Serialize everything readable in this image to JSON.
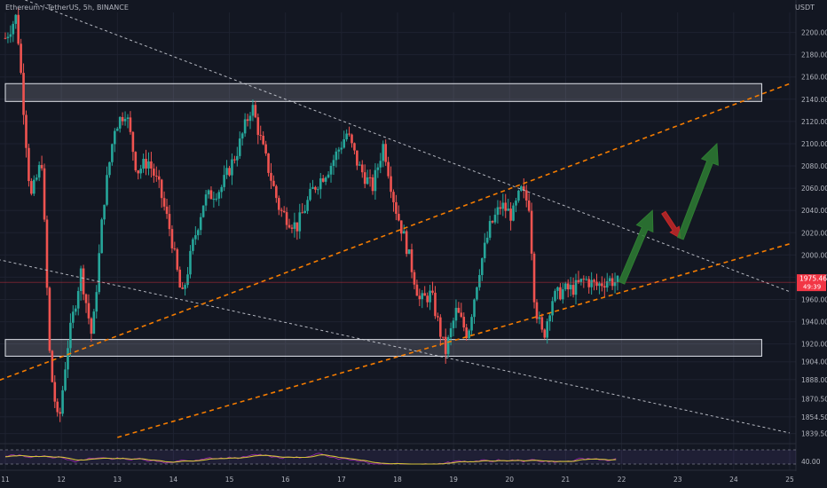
{
  "header": {
    "symbol_title": "Ethereum / TetherUS, 5h, BINANCE",
    "unit_label": "USDT"
  },
  "price_badge": {
    "value": "1975.46",
    "countdown": "49:39",
    "color": "#f23645"
  },
  "colors": {
    "background": "#131722",
    "bull": "#26a69a",
    "bear": "#ef5350",
    "channel": "#f57c00",
    "trendline": "#d1d4dc",
    "zone": "#d1d4dc",
    "arrow_up": "#2e7d32",
    "arrow_down": "#c62828",
    "rsi_line": "#d4c13a",
    "rsi_secondary": "#9c27b0",
    "grid": "#1e2230"
  },
  "chart_data": {
    "type": "candlestick",
    "x_axis": {
      "type": "date",
      "ticks": [
        "11",
        "12",
        "13",
        "14",
        "15",
        "16",
        "17",
        "18",
        "19",
        "20",
        "21",
        "22",
        "23",
        "24",
        "25"
      ],
      "range": [
        11,
        25
      ]
    },
    "y_axis": {
      "ticks": [
        "2200.00",
        "2180.00",
        "2160.00",
        "2140.00",
        "2120.00",
        "2100.00",
        "2080.00",
        "2060.00",
        "2040.00",
        "2020.00",
        "2000.00",
        "1980.00",
        "1960.00",
        "1940.00",
        "1920.00",
        "1904.00",
        "1888.00",
        "1870.50",
        "1854.50",
        "1839.50"
      ],
      "range": [
        1832,
        2218
      ]
    },
    "price_path": [
      [
        11.0,
        2195
      ],
      [
        11.2,
        2215
      ],
      [
        11.45,
        2050
      ],
      [
        11.65,
        2085
      ],
      [
        11.8,
        1900
      ],
      [
        11.95,
        1845
      ],
      [
        12.1,
        1915
      ],
      [
        12.35,
        1985
      ],
      [
        12.55,
        1925
      ],
      [
        12.75,
        2045
      ],
      [
        12.95,
        2115
      ],
      [
        13.15,
        2130
      ],
      [
        13.35,
        2075
      ],
      [
        13.55,
        2085
      ],
      [
        13.75,
        2060
      ],
      [
        13.95,
        2020
      ],
      [
        14.15,
        1960
      ],
      [
        14.35,
        2010
      ],
      [
        14.55,
        2050
      ],
      [
        14.85,
        2060
      ],
      [
        15.15,
        2095
      ],
      [
        15.4,
        2135
      ],
      [
        15.6,
        2095
      ],
      [
        15.9,
        2040
      ],
      [
        16.2,
        2025
      ],
      [
        16.5,
        2060
      ],
      [
        16.8,
        2080
      ],
      [
        17.1,
        2110
      ],
      [
        17.3,
        2080
      ],
      [
        17.55,
        2060
      ],
      [
        17.75,
        2100
      ],
      [
        17.95,
        2045
      ],
      [
        18.15,
        2010
      ],
      [
        18.4,
        1958
      ],
      [
        18.6,
        1965
      ],
      [
        18.85,
        1912
      ],
      [
        19.05,
        1950
      ],
      [
        19.25,
        1928
      ],
      [
        19.45,
        1985
      ],
      [
        19.65,
        2025
      ],
      [
        19.85,
        2045
      ],
      [
        20.05,
        2035
      ],
      [
        20.2,
        2058
      ],
      [
        20.35,
        2045
      ],
      [
        20.45,
        1955
      ],
      [
        20.6,
        1925
      ],
      [
        20.75,
        1960
      ],
      [
        20.95,
        1968
      ],
      [
        21.15,
        1970
      ],
      [
        21.35,
        1978
      ],
      [
        21.55,
        1972
      ],
      [
        21.75,
        1978
      ],
      [
        21.95,
        1975
      ]
    ],
    "horizontal_zones": [
      {
        "name": "resistance",
        "from": 2138,
        "to": 2154,
        "x_start": 11.0,
        "x_end": 24.5
      },
      {
        "name": "support",
        "from": 1909,
        "to": 1924,
        "x_start": 11.0,
        "x_end": 24.5
      }
    ],
    "channel_lines": [
      {
        "name": "upper-channel",
        "x1": 10.5,
        "y1": 1880,
        "x2": 25.0,
        "y2": 2154
      },
      {
        "name": "lower-channel",
        "x1": 13.0,
        "y1": 1836,
        "x2": 25.0,
        "y2": 2010
      }
    ],
    "trend_lines": [
      {
        "name": "upper-downtrend",
        "x1": 11.0,
        "y1": 2236,
        "x2": 25.0,
        "y2": 1967
      },
      {
        "name": "lower-downtrend",
        "x1": 10.5,
        "y1": 2000,
        "x2": 25.0,
        "y2": 1840
      }
    ],
    "current_price": 1975.46,
    "projection_arrows": [
      {
        "name": "projection-up-1",
        "x1": 22.0,
        "y1": 1975,
        "x2": 22.55,
        "y2": 2040,
        "direction": "up"
      },
      {
        "name": "projection-down",
        "x1": 22.75,
        "y1": 2038,
        "x2": 23.05,
        "y2": 2015,
        "direction": "down"
      },
      {
        "name": "projection-up-2",
        "x1": 23.05,
        "y1": 2015,
        "x2": 23.7,
        "y2": 2100,
        "direction": "up"
      }
    ],
    "rsi_panel": {
      "level_label": "40.00",
      "upper_level": 70,
      "lower_level": 30
    }
  }
}
